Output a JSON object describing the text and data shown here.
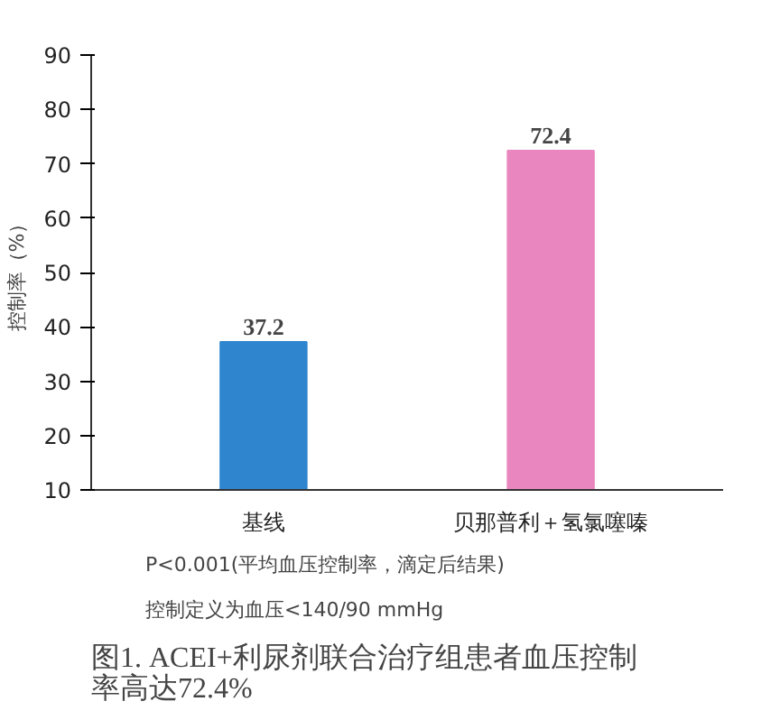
{
  "chart_data": {
    "type": "bar",
    "categories": [
      "基线",
      "贝那普利＋氢氯噻嗪"
    ],
    "values": [
      37.2,
      72.4
    ],
    "colors": [
      "#2f86cf",
      "#ea86bf"
    ],
    "ylabel": "控制率（%）",
    "ylim": [
      10,
      90
    ],
    "yticks": [
      10,
      20,
      30,
      40,
      50,
      60,
      70,
      80,
      90
    ],
    "data_labels": true,
    "grid": false,
    "annotations": [
      "P<0.001(平均血压控制率，滴定后结果)",
      "控制定义为血压<140/90 mmHg",
      "图1. ACEI+利尿剂联合治疗组患者血压控制率高达72.4%"
    ]
  }
}
